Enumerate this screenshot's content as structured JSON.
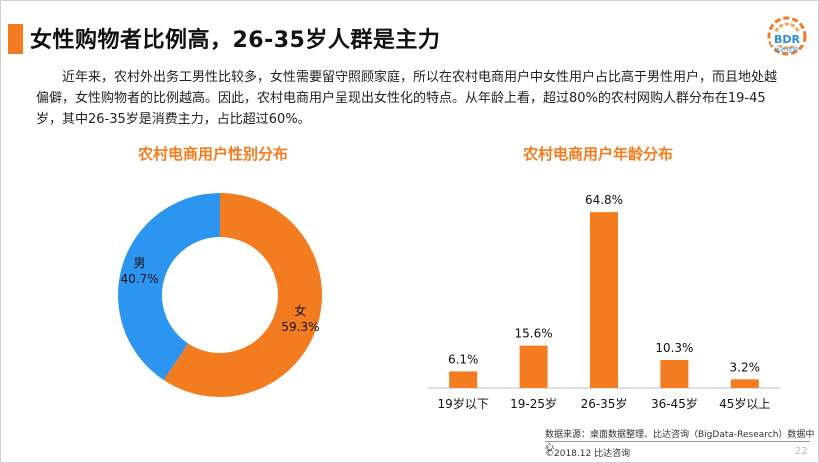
{
  "header": {
    "title": "女性购物者比例高，26-35岁人群是主力",
    "logo_text": "BDR",
    "logo_sub": "比达咨询"
  },
  "paragraph": "近年来，农村外出务工男性比较多，女性需要留守照顾家庭，所以在农村电商用户中女性用户占比高于男性用户，而且地处越偏僻，女性购物者的比例越高。因此，农村电商用户呈现出女性化的特点。从年龄上看，超过80%的农村网购人群分布在19-45岁，其中26-35岁是消费主力，占比超过60%。",
  "colors": {
    "accent": "#f47c20",
    "female": "#f47c20",
    "male": "#2b95f0"
  },
  "chart_data": [
    {
      "type": "pie",
      "title": "农村电商用户性别分布",
      "donut": true,
      "slices": [
        {
          "name": "女",
          "value": 59.3,
          "label": "59.3%",
          "color": "#f47c20"
        },
        {
          "name": "男",
          "value": 40.7,
          "label": "40.7%",
          "color": "#2b95f0"
        }
      ]
    },
    {
      "type": "bar",
      "title": "农村电商用户年龄分布",
      "categories": [
        "19岁以下",
        "19-25岁",
        "26-35岁",
        "36-45岁",
        "45岁以上"
      ],
      "values": [
        6.1,
        15.6,
        64.8,
        10.3,
        3.2
      ],
      "labels": [
        "6.1%",
        "15.6%",
        "64.8%",
        "10.3%",
        "3.2%"
      ],
      "color": "#f47c20",
      "ylim": [
        0,
        70
      ]
    }
  ],
  "footer": {
    "source": "数据来源：桌面数据整理、比达咨询（BigData-Research）数据中心",
    "copyright": "©2018.12 比达咨询",
    "page": "22"
  }
}
